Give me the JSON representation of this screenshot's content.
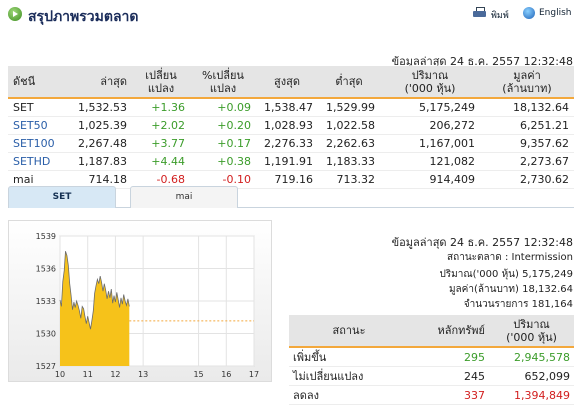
{
  "header": {
    "title": "สรุปภาพรวมตลาด",
    "print_label": "พิมพ์",
    "english_label": "English"
  },
  "update_text": "ข้อมูลล่าสุด 24 ธ.ค. 2557 12:32:48",
  "market_table": {
    "headers": {
      "index": "ดัชนี",
      "last": "ล่าสุด",
      "change": [
        "เปลี่ยน",
        "แปลง"
      ],
      "pct_change": [
        "%เปลี่ยน",
        "แปลง"
      ],
      "high": "สูงสุด",
      "low": "ต่ำสุด",
      "volume": [
        "ปริมาณ",
        "('000 หุ้น)"
      ],
      "value": [
        "มูลค่า",
        "(ล้านบาท)"
      ]
    },
    "rows": [
      {
        "name": "SET",
        "last": "1,532.53",
        "change": "+1.36",
        "pct": "+0.09",
        "high": "1,538.47",
        "low": "1,529.99",
        "volume": "5,175,249",
        "value": "18,132.64"
      },
      {
        "name": "SET50",
        "last": "1,025.39",
        "change": "+2.02",
        "pct": "+0.20",
        "high": "1,028.93",
        "low": "1,022.58",
        "volume": "206,272",
        "value": "6,251.21"
      },
      {
        "name": "SET100",
        "last": "2,267.48",
        "change": "+3.77",
        "pct": "+0.17",
        "high": "2,276.33",
        "low": "2,262.63",
        "volume": "1,167,001",
        "value": "9,357.62"
      },
      {
        "name": "SETHD",
        "last": "1,187.83",
        "change": "+4.44",
        "pct": "+0.38",
        "high": "1,191.91",
        "low": "1,183.33",
        "volume": "121,082",
        "value": "2,273.67"
      },
      {
        "name": "mai",
        "last": "714.18",
        "change": "-0.68",
        "pct": "-0.10",
        "high": "719.16",
        "low": "713.32",
        "volume": "914,409",
        "value": "2,730.62"
      }
    ]
  },
  "tabs": [
    {
      "label": "SET",
      "active": true
    },
    {
      "label": "mai",
      "active": false
    }
  ],
  "set_panel": {
    "update_text": "ข้อมูลล่าสุด 24 ธ.ค. 2557 12:32:48",
    "status_label": "สถานะตลาด",
    "status_value": "Intermission",
    "volume_label": "ปริมาณ('000 หุ้น)",
    "volume_value": "5,175,249",
    "value_label": "มูลค่า(ล้านบาท)",
    "value_value": "18,132.64",
    "trades_label": "จำนวนรายการ",
    "trades_value": "181,164"
  },
  "breadth_table": {
    "headers": {
      "status": "สถานะ",
      "securities": "หลักทรัพย์",
      "volume": [
        "ปริมาณ",
        "('000 หุ้น)"
      ]
    },
    "rows": [
      {
        "status": "เพิ่มขึ้น",
        "securities": "295",
        "volume": "2,945,578",
        "color": "#3b9c2a"
      },
      {
        "status": "ไม่เปลี่ยนแปลง",
        "securities": "245",
        "volume": "652,099",
        "color": "#222222"
      },
      {
        "status": "ลดลง",
        "securities": "337",
        "volume": "1,394,849",
        "color": "#d21f1f"
      }
    ]
  },
  "colors": {
    "accent_orange": "#f3a83c",
    "area_fill": "#f6c21a",
    "positive": "#3b9c2a",
    "negative": "#d21f1f",
    "link": "#2a5ea8"
  },
  "chart_data": {
    "type": "area",
    "x_ticks": [
      "10",
      "11",
      "12",
      "13",
      "15",
      "16",
      "17"
    ],
    "x_range": [
      10,
      17
    ],
    "y_ticks": [
      "1527",
      "1530",
      "1533",
      "1536",
      "1539"
    ],
    "ylim": [
      1527,
      1539
    ],
    "reference_value": 1531.17,
    "series": [
      {
        "x": [
          10.0,
          10.05,
          10.1,
          10.15,
          10.2,
          10.25,
          10.3,
          10.35,
          10.4,
          10.45,
          10.5,
          10.55,
          10.6,
          10.65,
          10.7,
          10.75,
          10.8,
          10.85,
          10.9,
          10.95,
          11.0,
          11.05,
          11.1,
          11.15,
          11.2,
          11.25,
          11.3,
          11.35,
          11.4,
          11.45,
          11.5,
          11.55,
          11.6,
          11.65,
          11.7,
          11.75,
          11.8,
          11.85,
          11.9,
          11.95,
          12.0,
          12.05,
          12.1,
          12.15,
          12.2,
          12.25,
          12.3,
          12.35,
          12.4,
          12.45,
          12.5
        ],
        "values": [
          1533.1,
          1532.5,
          1534.8,
          1535.8,
          1537.6,
          1537.2,
          1536.3,
          1534.6,
          1533.5,
          1532.2,
          1532.9,
          1532.4,
          1533.0,
          1532.6,
          1532.1,
          1531.4,
          1532.5,
          1532.3,
          1531.6,
          1530.9,
          1531.6,
          1531.0,
          1530.4,
          1531.2,
          1532.1,
          1533.7,
          1534.4,
          1535.0,
          1534.6,
          1535.3,
          1534.7,
          1533.9,
          1534.6,
          1534.0,
          1533.2,
          1533.9,
          1533.3,
          1534.1,
          1532.8,
          1533.5,
          1532.9,
          1533.8,
          1533.1,
          1532.4,
          1533.3,
          1532.7,
          1533.6,
          1533.0,
          1532.6,
          1533.2,
          1532.5
        ]
      }
    ]
  }
}
